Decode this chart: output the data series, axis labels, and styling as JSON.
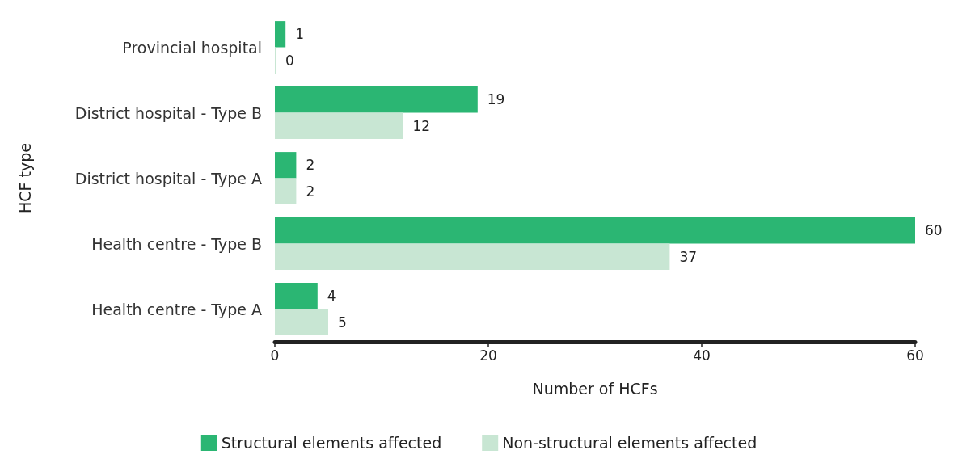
{
  "chart_data": {
    "type": "bar",
    "orientation": "horizontal",
    "xlabel": "Number of HCFs",
    "ylabel": "HCF type",
    "categories": [
      "Provincial hospital",
      "District hospital - Type B",
      "District hospital - Type A",
      "Health centre - Type B",
      "Health centre - Type A"
    ],
    "series": [
      {
        "name": "Structural elements affected",
        "color": "#2bb673",
        "values": [
          1,
          19,
          2,
          60,
          4
        ]
      },
      {
        "name": "Non-structural elements affected",
        "color": "#c8e6d3",
        "values": [
          0,
          12,
          2,
          37,
          5
        ]
      }
    ],
    "xlim": [
      0,
      60
    ],
    "xticks": [
      0,
      20,
      40,
      60
    ],
    "data_labels": true,
    "grid": false,
    "legend": "bottom"
  }
}
